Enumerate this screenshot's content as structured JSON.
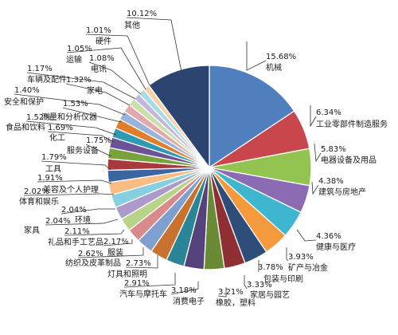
{
  "chart_data": {
    "type": "pie",
    "title": "",
    "start_angle_deg": 0,
    "direction": "clockwise",
    "slices": [
      {
        "name": "机械",
        "label": "15.68%",
        "value": 15.68,
        "color": "#4f7fbd"
      },
      {
        "name": "工业零部件制造服务",
        "label": "6.34%",
        "value": 6.34,
        "color": "#c8474c"
      },
      {
        "name": "电器设备及用品",
        "label": "5.83%",
        "value": 5.83,
        "color": "#93c452"
      },
      {
        "name": "建筑与房地产",
        "label": "4.38%",
        "value": 4.38,
        "color": "#8a6bb4"
      },
      {
        "name": "健康与医疗",
        "label": "4.36%",
        "value": 4.36,
        "color": "#3fb6d0"
      },
      {
        "name": "矿产与冶金",
        "label": "3.93%",
        "value": 3.93,
        "color": "#f59a3c"
      },
      {
        "name": "包装与印刷",
        "label": "3.78%",
        "value": 3.78,
        "color": "#2e4d78"
      },
      {
        "name": "家居与园艺",
        "label": "3.33%",
        "value": 3.33,
        "color": "#8f2f33"
      },
      {
        "name": "橡胶，塑料",
        "label": "3.21%",
        "value": 3.21,
        "color": "#6b8a36"
      },
      {
        "name": "消费电子",
        "label": "3.18%",
        "value": 3.18,
        "color": "#54437a"
      },
      {
        "name": "汽车与摩托车",
        "label": "2.91%",
        "value": 2.91,
        "color": "#2b8596"
      },
      {
        "name": "灯具和照明",
        "label": "2.73%",
        "value": 2.73,
        "color": "#c9712f"
      },
      {
        "name": "纺织及皮革制品",
        "label": "2.62%",
        "value": 2.62,
        "color": "#7f9fcf"
      },
      {
        "name": "服装",
        "label": "2.17%",
        "value": 2.17,
        "color": "#d98a8c"
      },
      {
        "name": "礼品和手工艺品",
        "label": "2.11%",
        "value": 2.11,
        "color": "#b7d489"
      },
      {
        "name": "家具",
        "label": "2.04%",
        "value": 2.04,
        "color": "#ad9acc"
      },
      {
        "name": "环境",
        "label": "2.04%",
        "value": 2.04,
        "color": "#85cfe0"
      },
      {
        "name": "体育和娱乐",
        "label": "2.02%",
        "value": 2.02,
        "color": "#f7bd85"
      },
      {
        "name": "美容及个人护理",
        "label": "1.91%",
        "value": 1.91,
        "color": "#3b65a0"
      },
      {
        "name": "工具",
        "label": "1.79%",
        "value": 1.79,
        "color": "#a8393d"
      },
      {
        "name": "服务设备",
        "label": "1.75%",
        "value": 1.75,
        "color": "#78a33c"
      },
      {
        "name": "化工",
        "label": "1.69%",
        "value": 1.69,
        "color": "#6c5297"
      },
      {
        "name": "食品和饮料",
        "label": "1.52%",
        "value": 1.52,
        "color": "#2c9ab3"
      },
      {
        "name": "测量和分析仪器",
        "label": "1.53%",
        "value": 1.53,
        "color": "#e07e2a"
      },
      {
        "name": "安全和保护",
        "label": "1.40%",
        "value": 1.4,
        "color": "#9ab3dc"
      },
      {
        "name": "家电",
        "label": "1.32%",
        "value": 1.32,
        "color": "#e3a9aa"
      },
      {
        "name": "车辆及配件",
        "label": "1.17%",
        "value": 1.17,
        "color": "#c9e0a8"
      },
      {
        "name": "电讯",
        "label": "1.08%",
        "value": 1.08,
        "color": "#c3b6dc"
      },
      {
        "name": "运输",
        "label": "1.05%",
        "value": 1.05,
        "color": "#a6dcea"
      },
      {
        "name": "硬件",
        "label": "1.01%",
        "value": 1.01,
        "color": "#f9d2ac"
      },
      {
        "name": "其他",
        "label": "10.12%",
        "value": 10.12,
        "color": "#2b4470"
      }
    ]
  }
}
